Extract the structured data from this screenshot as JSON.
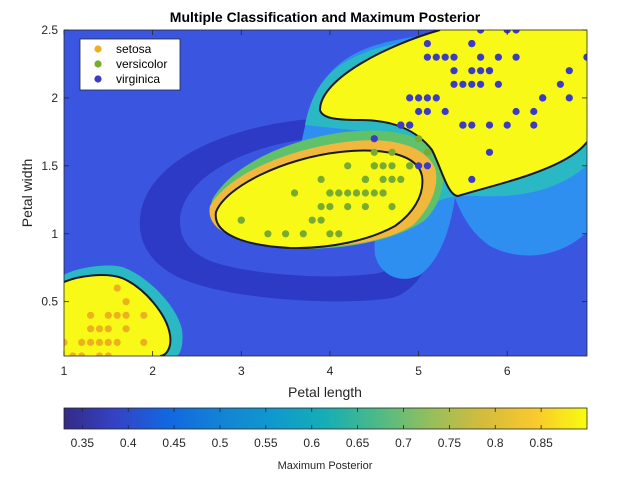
{
  "chart_data": {
    "type": "scatter",
    "title": "Multiple Classification and Maximum Posterior",
    "xlabel": "Petal length",
    "ylabel": "Petal width",
    "xlim": [
      1,
      6.9
    ],
    "ylim": [
      0.1,
      2.5
    ],
    "xticks": [
      "1",
      "2",
      "3",
      "4",
      "5",
      "6"
    ],
    "yticks": [
      "0.5",
      "1",
      "1.5",
      "2",
      "2.5"
    ],
    "legend": {
      "placement": "top-left"
    },
    "series": [
      {
        "name": "setosa",
        "color": "#EDB120",
        "points": [
          [
            1.4,
            0.2
          ],
          [
            1.3,
            0.2
          ],
          [
            1.5,
            0.2
          ],
          [
            1.7,
            0.4
          ],
          [
            1.4,
            0.3
          ],
          [
            1.5,
            0.1
          ],
          [
            1.6,
            0.2
          ],
          [
            1.1,
            0.1
          ],
          [
            1.2,
            0.2
          ],
          [
            1.3,
            0.4
          ],
          [
            1.7,
            0.3
          ],
          [
            1.5,
            0.4
          ],
          [
            1.0,
            0.2
          ],
          [
            1.7,
            0.5
          ],
          [
            1.9,
            0.2
          ],
          [
            1.6,
            0.4
          ],
          [
            1.4,
            0.1
          ],
          [
            1.6,
            0.6
          ],
          [
            1.9,
            0.4
          ],
          [
            1.3,
            0.3
          ],
          [
            1.5,
            0.3
          ],
          [
            1.2,
            0.1
          ]
        ]
      },
      {
        "name": "versicolor",
        "color": "#77AC30",
        "points": [
          [
            4.7,
            1.4
          ],
          [
            4.5,
            1.5
          ],
          [
            4.9,
            1.5
          ],
          [
            4.0,
            1.3
          ],
          [
            4.6,
            1.5
          ],
          [
            4.5,
            1.3
          ],
          [
            4.7,
            1.6
          ],
          [
            3.3,
            1.0
          ],
          [
            4.6,
            1.3
          ],
          [
            3.9,
            1.4
          ],
          [
            3.5,
            1.0
          ],
          [
            4.2,
            1.5
          ],
          [
            4.0,
            1.0
          ],
          [
            4.7,
            1.4
          ],
          [
            3.6,
            1.3
          ],
          [
            4.4,
            1.4
          ],
          [
            4.1,
            1.0
          ],
          [
            4.5,
            1.5
          ],
          [
            3.9,
            1.1
          ],
          [
            4.8,
            1.8
          ],
          [
            4.0,
            1.3
          ],
          [
            4.9,
            1.5
          ],
          [
            4.7,
            1.2
          ],
          [
            4.3,
            1.3
          ],
          [
            4.4,
            1.4
          ],
          [
            4.8,
            1.4
          ],
          [
            5.0,
            1.7
          ],
          [
            3.8,
            1.1
          ],
          [
            3.7,
            1.0
          ],
          [
            3.9,
            1.2
          ],
          [
            5.1,
            1.6
          ],
          [
            4.5,
            1.6
          ],
          [
            4.4,
            1.3
          ],
          [
            4.1,
            1.3
          ],
          [
            4.0,
            1.3
          ],
          [
            4.4,
            1.2
          ],
          [
            4.6,
            1.4
          ],
          [
            4.0,
            1.2
          ],
          [
            3.0,
            1.1
          ],
          [
            4.2,
            1.3
          ],
          [
            4.2,
            1.2
          ],
          [
            4.3,
            1.3
          ],
          [
            3.0,
            1.1
          ],
          [
            4.1,
            1.3
          ],
          [
            4.6,
            1.3
          ],
          [
            4.7,
            1.5
          ],
          [
            3.6,
            1.3
          ],
          [
            4.4,
            1.4
          ]
        ]
      },
      {
        "name": "virginica",
        "color": "#3B3BC4",
        "points": [
          [
            6.0,
            2.5
          ],
          [
            5.1,
            1.9
          ],
          [
            5.9,
            2.1
          ],
          [
            5.6,
            1.8
          ],
          [
            5.8,
            2.2
          ],
          [
            6.6,
            2.1
          ],
          [
            4.5,
            1.7
          ],
          [
            6.3,
            1.8
          ],
          [
            5.8,
            1.8
          ],
          [
            6.1,
            2.5
          ],
          [
            5.1,
            2.0
          ],
          [
            5.3,
            1.9
          ],
          [
            5.5,
            2.1
          ],
          [
            5.0,
            2.0
          ],
          [
            5.1,
            2.4
          ],
          [
            5.3,
            2.3
          ],
          [
            5.5,
            1.8
          ],
          [
            6.7,
            2.2
          ],
          [
            6.9,
            2.3
          ],
          [
            5.0,
            1.5
          ],
          [
            5.7,
            2.3
          ],
          [
            4.9,
            2.0
          ],
          [
            6.7,
            2.0
          ],
          [
            4.9,
            1.8
          ],
          [
            5.7,
            2.1
          ],
          [
            6.0,
            1.8
          ],
          [
            4.8,
            1.8
          ],
          [
            4.9,
            1.8
          ],
          [
            5.6,
            2.1
          ],
          [
            5.8,
            1.6
          ],
          [
            6.1,
            1.9
          ],
          [
            6.4,
            2.0
          ],
          [
            5.6,
            2.2
          ],
          [
            5.1,
            1.5
          ],
          [
            5.6,
            1.4
          ],
          [
            6.1,
            2.3
          ],
          [
            5.6,
            2.4
          ],
          [
            5.5,
            1.8
          ],
          [
            4.8,
            1.8
          ],
          [
            5.4,
            2.1
          ],
          [
            5.6,
            2.4
          ],
          [
            5.1,
            2.3
          ],
          [
            5.9,
            2.3
          ],
          [
            5.7,
            2.5
          ],
          [
            5.2,
            2.3
          ],
          [
            5.0,
            1.9
          ],
          [
            5.2,
            2.0
          ],
          [
            5.4,
            2.3
          ],
          [
            6.3,
            1.9
          ],
          [
            5.8,
            2.2
          ],
          [
            6.9,
            2.3
          ],
          [
            6.4,
            2.0
          ],
          [
            5.7,
            2.2
          ],
          [
            5.4,
            2.2
          ]
        ]
      }
    ],
    "colorbar": {
      "label": "Maximum Posterior",
      "range": [
        0.33,
        0.9
      ],
      "ticks": [
        "0.35",
        "0.4",
        "0.45",
        "0.5",
        "0.55",
        "0.6",
        "0.65",
        "0.7",
        "0.75",
        "0.8",
        "0.85"
      ],
      "placement": "bottom"
    },
    "regions": {
      "background": "#3A56E0",
      "ring": "#2C3AC6",
      "lightBlue": "#2F8FF0",
      "teal": "#2BB8C5",
      "green": "#5FC16A",
      "orange": "#F2B83E",
      "yellow": "#F9F918"
    }
  }
}
